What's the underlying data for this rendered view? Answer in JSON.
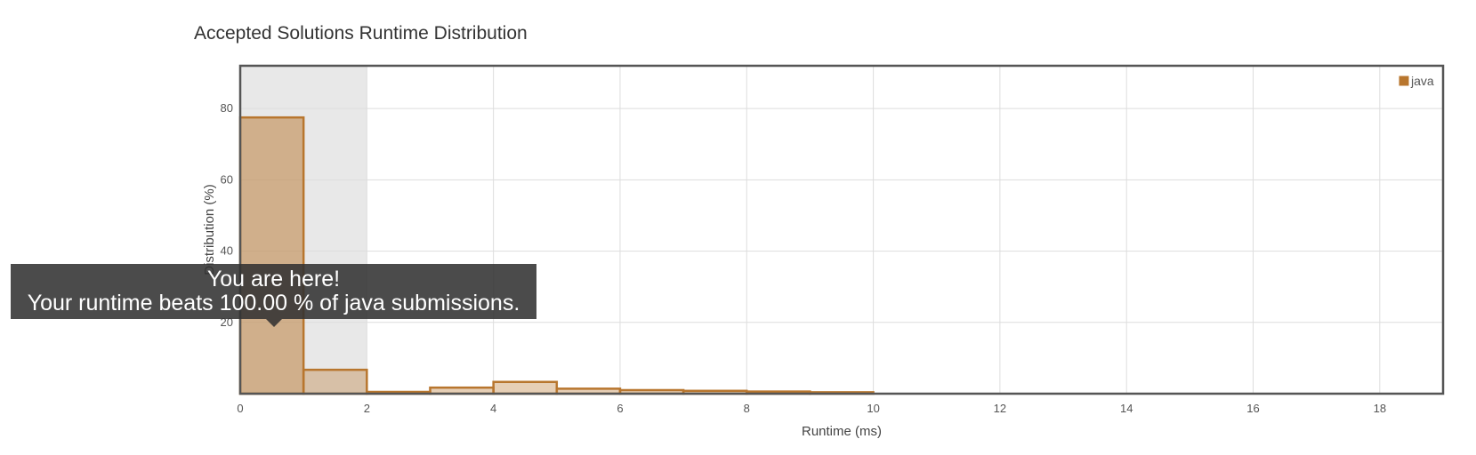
{
  "chart_data": {
    "type": "bar",
    "title": "Accepted Solutions Runtime Distribution",
    "xlabel": "Runtime (ms)",
    "ylabel": "Distribution (%)",
    "xlim": [
      0,
      19
    ],
    "ylim": [
      0,
      92
    ],
    "x_ticks": [
      0,
      2,
      4,
      6,
      8,
      10,
      12,
      14,
      16,
      18
    ],
    "y_ticks": [
      20,
      40,
      60,
      80
    ],
    "grid": true,
    "legend_position": "top-right",
    "series": [
      {
        "name": "java",
        "color": "#b8762e",
        "bins": [
          {
            "start": 0,
            "end": 1,
            "value": 77.5
          },
          {
            "start": 1,
            "end": 2,
            "value": 6.7
          },
          {
            "start": 2,
            "end": 3,
            "value": 0.5
          },
          {
            "start": 3,
            "end": 4,
            "value": 1.7
          },
          {
            "start": 4,
            "end": 5,
            "value": 3.3
          },
          {
            "start": 5,
            "end": 6,
            "value": 1.4
          },
          {
            "start": 6,
            "end": 7,
            "value": 1.0
          },
          {
            "start": 7,
            "end": 8,
            "value": 0.8
          },
          {
            "start": 8,
            "end": 9,
            "value": 0.6
          },
          {
            "start": 9,
            "end": 10,
            "value": 0.4
          }
        ]
      }
    ],
    "highlight_range": [
      0,
      2
    ],
    "current_bin": 0
  },
  "tooltip": {
    "line1": "You are here!",
    "line2": "Your runtime beats 100.00 % of java submissions."
  }
}
